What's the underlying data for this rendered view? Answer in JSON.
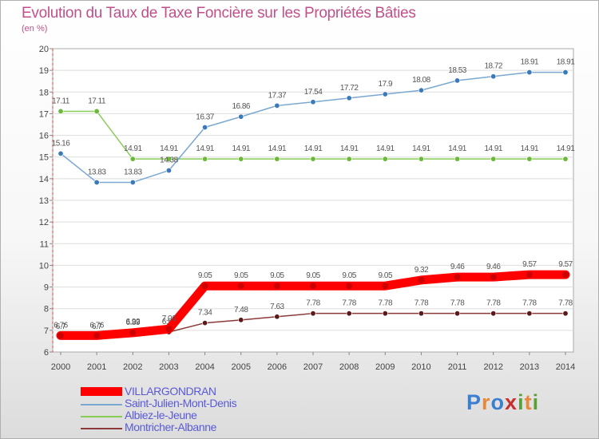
{
  "title": "Evolution du Taux de Taxe Foncière sur les Propriétés Bâties",
  "unit_label": "(en %)",
  "logo": {
    "text": "Proxiti",
    "letters": [
      "P",
      "r",
      "o",
      "x",
      "i",
      "t",
      "i"
    ],
    "colors": [
      "#3a7fd0",
      "#e8883a",
      "#3a7fd0",
      "#c83030",
      "#5aa03a",
      "#e8883a",
      "#5aa03a"
    ]
  },
  "chart_data": {
    "type": "line",
    "title": "Evolution du Taux de Taxe Foncière sur les Propriétés Bâties",
    "ylabel": "(en %)",
    "ylim": [
      6,
      20
    ],
    "yticks": [
      "6",
      "7",
      "8",
      "9",
      "10",
      "11",
      "12",
      "13",
      "14",
      "15",
      "16",
      "17",
      "18",
      "19",
      "20"
    ],
    "x": [
      "2000",
      "2001",
      "2002",
      "2003",
      "2004",
      "2005",
      "2006",
      "2007",
      "2008",
      "2009",
      "2010",
      "2011",
      "2012",
      "2013",
      "2014"
    ],
    "series": [
      {
        "name": "VILLARGONDRAN",
        "color": "#ff0000",
        "values": [
          6.76,
          6.76,
          6.89,
          7.06,
          9.05,
          9.05,
          9.05,
          9.05,
          9.05,
          9.05,
          9.32,
          9.46,
          9.46,
          9.57,
          9.57
        ],
        "labels": [
          "6.76",
          "6.76",
          "6.89",
          "7.06",
          "9.05",
          "9.05",
          "9.05",
          "9.05",
          "9.05",
          "9.05",
          "9.32",
          "9.46",
          "9.46",
          "9.57",
          "9.57"
        ]
      },
      {
        "name": "Saint-Julien-Mont-Denis",
        "color": "#7ba8d0",
        "values": [
          15.16,
          13.83,
          13.83,
          14.38,
          16.37,
          16.86,
          17.37,
          17.54,
          17.72,
          17.9,
          18.08,
          18.53,
          18.72,
          18.91,
          18.91
        ],
        "labels": [
          "15.16",
          "13.83",
          "13.83",
          "14.38",
          "16.37",
          "16.86",
          "17.37",
          "17.54",
          "17.72",
          "17.9",
          "18.08",
          "18.53",
          "18.72",
          "18.91",
          "18.91"
        ]
      },
      {
        "name": "Albiez-le-Jeune",
        "color": "#88cc55",
        "values": [
          17.11,
          17.11,
          14.91,
          14.91,
          14.91,
          14.91,
          14.91,
          14.91,
          14.91,
          14.91,
          14.91,
          14.91,
          14.91,
          14.91,
          14.91
        ],
        "labels": [
          "17.11",
          "17.11",
          "14.91",
          "14.91",
          "14.91",
          "14.91",
          "14.91",
          "14.91",
          "14.91",
          "14.91",
          "14.91",
          "14.91",
          "14.91",
          "14.91",
          "14.91"
        ]
      },
      {
        "name": "Montricher-Albanne",
        "color": "#8b3a3a",
        "values": [
          6.7,
          6.7,
          6.92,
          6.92,
          7.34,
          7.48,
          7.63,
          7.78,
          7.78,
          7.78,
          7.78,
          7.78,
          7.78,
          7.78,
          7.78
        ],
        "labels": [
          "6.7",
          "6.7",
          "6.92",
          "6.92",
          "7.34",
          "7.48",
          "7.63",
          "7.78",
          "7.78",
          "7.78",
          "7.78",
          "7.78",
          "7.78",
          "7.78",
          "7.78"
        ]
      }
    ]
  }
}
